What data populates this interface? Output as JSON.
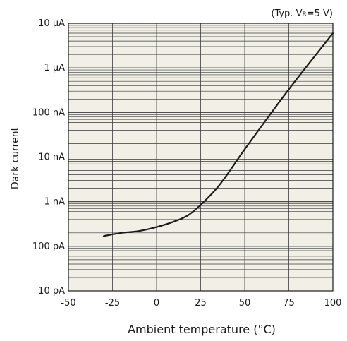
{
  "chart_data": {
    "type": "line",
    "annotation": {
      "prefix": "(Typ. V",
      "subscript": "R",
      "suffix": "=5 V)"
    },
    "xlabel": "Ambient temperature (°C)",
    "ylabel": "Dark current",
    "xlim": [
      -50,
      100
    ],
    "ylim_log10_amperes": [
      -11,
      -5
    ],
    "y_scale": "log",
    "grid": true,
    "x_ticks": [
      {
        "value": -50,
        "label": "-50"
      },
      {
        "value": -25,
        "label": "-25"
      },
      {
        "value": 0,
        "label": "0"
      },
      {
        "value": 25,
        "label": "25"
      },
      {
        "value": 50,
        "label": "50"
      },
      {
        "value": 75,
        "label": "75"
      },
      {
        "value": 100,
        "label": "100"
      }
    ],
    "y_ticks": [
      {
        "value": 1e-11,
        "label": "10 pA"
      },
      {
        "value": 1e-10,
        "label": "100 pA"
      },
      {
        "value": 1e-09,
        "label": "1 nA"
      },
      {
        "value": 1e-08,
        "label": "10 nA"
      },
      {
        "value": 1e-07,
        "label": "100 nA"
      },
      {
        "value": 1e-06,
        "label": "1 μA"
      },
      {
        "value": 1e-05,
        "label": "10 μA"
      }
    ],
    "series": [
      {
        "values": [
          {
            "x": -30,
            "y": 1.7e-10
          },
          {
            "x": -20,
            "y": 2e-10
          },
          {
            "x": -10,
            "y": 2.2e-10
          },
          {
            "x": 0,
            "y": 2.7e-10
          },
          {
            "x": 10,
            "y": 3.6e-10
          },
          {
            "x": 18,
            "y": 5e-10
          },
          {
            "x": 25,
            "y": 8.5e-10
          },
          {
            "x": 35,
            "y": 2.2e-09
          },
          {
            "x": 50,
            "y": 1.5e-08
          },
          {
            "x": 75,
            "y": 3.3e-07
          },
          {
            "x": 100,
            "y": 6e-06
          }
        ]
      }
    ],
    "colors": {
      "plot_bg": "#f2efe6",
      "grid": "#3a3a3a",
      "line": "#1a1a1a"
    }
  }
}
